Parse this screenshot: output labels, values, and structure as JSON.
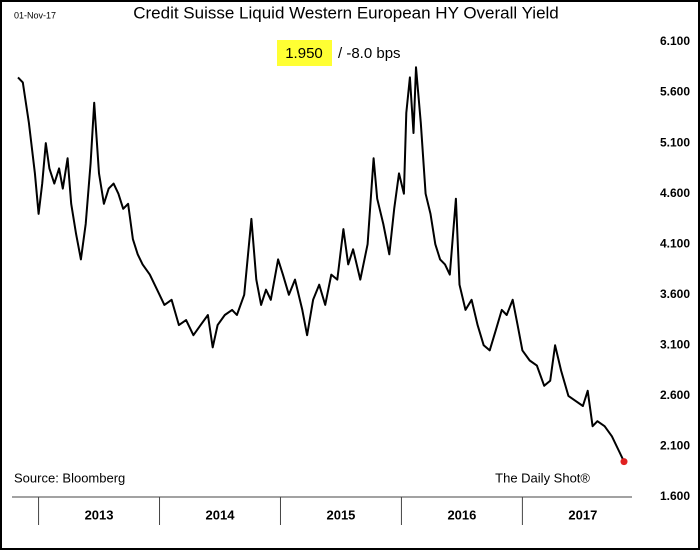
{
  "chart_data": {
    "type": "line",
    "title": "Credit Suisse Liquid Western European HY Overall Yield",
    "date": "01-Nov-17",
    "annotations": [
      "1.950",
      "/  -8.0 bps"
    ],
    "source": "Source: Bloomberg",
    "credit": "The Daily Shot®",
    "x": [
      2012.83,
      2012.87,
      2012.92,
      2012.97,
      2013.0,
      2013.03,
      2013.06,
      2013.09,
      2013.13,
      2013.17,
      2013.2,
      2013.24,
      2013.27,
      2013.31,
      2013.35,
      2013.39,
      2013.43,
      2013.46,
      2013.5,
      2013.54,
      2013.58,
      2013.62,
      2013.66,
      2013.7,
      2013.74,
      2013.78,
      2013.82,
      2013.86,
      2013.92,
      2013.98,
      2014.04,
      2014.1,
      2014.16,
      2014.22,
      2014.28,
      2014.34,
      2014.4,
      2014.44,
      2014.48,
      2014.54,
      2014.6,
      2014.64,
      2014.7,
      2014.76,
      2014.8,
      2014.84,
      2014.88,
      2014.92,
      2014.98,
      2015.02,
      2015.07,
      2015.12,
      2015.18,
      2015.22,
      2015.27,
      2015.32,
      2015.37,
      2015.42,
      2015.47,
      2015.52,
      2015.56,
      2015.6,
      2015.66,
      2015.72,
      2015.77,
      2015.8,
      2015.85,
      2015.9,
      2015.94,
      2015.98,
      2016.02,
      2016.04,
      2016.07,
      2016.1,
      2016.12,
      2016.16,
      2016.2,
      2016.24,
      2016.28,
      2016.32,
      2016.36,
      2016.4,
      2016.45,
      2016.48,
      2016.53,
      2016.58,
      2016.63,
      2016.68,
      2016.73,
      2016.78,
      2016.83,
      2016.87,
      2016.92,
      2016.96,
      2017.0,
      2017.06,
      2017.12,
      2017.18,
      2017.23,
      2017.27,
      2017.32,
      2017.38,
      2017.44,
      2017.5,
      2017.54,
      2017.58,
      2017.62,
      2017.68,
      2017.74,
      2017.8,
      2017.84
    ],
    "series": [
      {
        "color": "#000000",
        "end_color": "#e02020",
        "values": [
          5.75,
          5.7,
          5.3,
          4.8,
          4.4,
          4.7,
          5.1,
          4.85,
          4.7,
          4.85,
          4.65,
          4.95,
          4.5,
          4.2,
          3.95,
          4.3,
          4.9,
          5.5,
          4.8,
          4.5,
          4.65,
          4.7,
          4.6,
          4.45,
          4.5,
          4.15,
          4.0,
          3.9,
          3.8,
          3.65,
          3.5,
          3.55,
          3.3,
          3.35,
          3.2,
          3.3,
          3.4,
          3.08,
          3.3,
          3.4,
          3.45,
          3.4,
          3.6,
          4.35,
          3.75,
          3.5,
          3.65,
          3.55,
          3.95,
          3.8,
          3.6,
          3.75,
          3.45,
          3.2,
          3.55,
          3.7,
          3.5,
          3.8,
          3.75,
          4.25,
          3.9,
          4.05,
          3.75,
          4.1,
          4.95,
          4.55,
          4.3,
          4.0,
          4.45,
          4.8,
          4.6,
          5.4,
          5.75,
          5.2,
          5.85,
          5.3,
          4.6,
          4.4,
          4.1,
          3.95,
          3.9,
          3.8,
          4.55,
          3.7,
          3.45,
          3.55,
          3.3,
          3.1,
          3.05,
          3.25,
          3.45,
          3.4,
          3.55,
          3.3,
          3.05,
          2.95,
          2.9,
          2.7,
          2.75,
          3.1,
          2.85,
          2.6,
          2.55,
          2.5,
          2.65,
          2.3,
          2.35,
          2.3,
          2.2,
          2.05,
          1.95
        ]
      }
    ],
    "xlim": [
      2012.83,
      2017.84
    ],
    "xticks": [
      {
        "value": 2013.5,
        "label": "2013"
      },
      {
        "value": 2014.5,
        "label": "2014"
      },
      {
        "value": 2015.5,
        "label": "2015"
      },
      {
        "value": 2016.5,
        "label": "2016"
      },
      {
        "value": 2017.5,
        "label": "2017"
      }
    ],
    "ylim": [
      1.6,
      6.1
    ],
    "yticks": [
      {
        "value": 1.6,
        "label": "1.600"
      },
      {
        "value": 2.1,
        "label": "2.100"
      },
      {
        "value": 2.6,
        "label": "2.600"
      },
      {
        "value": 3.1,
        "label": "3.100"
      },
      {
        "value": 3.6,
        "label": "3.600"
      },
      {
        "value": 4.1,
        "label": "4.100"
      },
      {
        "value": 4.6,
        "label": "4.600"
      },
      {
        "value": 5.1,
        "label": "5.100"
      },
      {
        "value": 5.6,
        "label": "5.600"
      },
      {
        "value": 6.1,
        "label": "6.100"
      }
    ],
    "y_axis_side": "right",
    "grid": false
  }
}
